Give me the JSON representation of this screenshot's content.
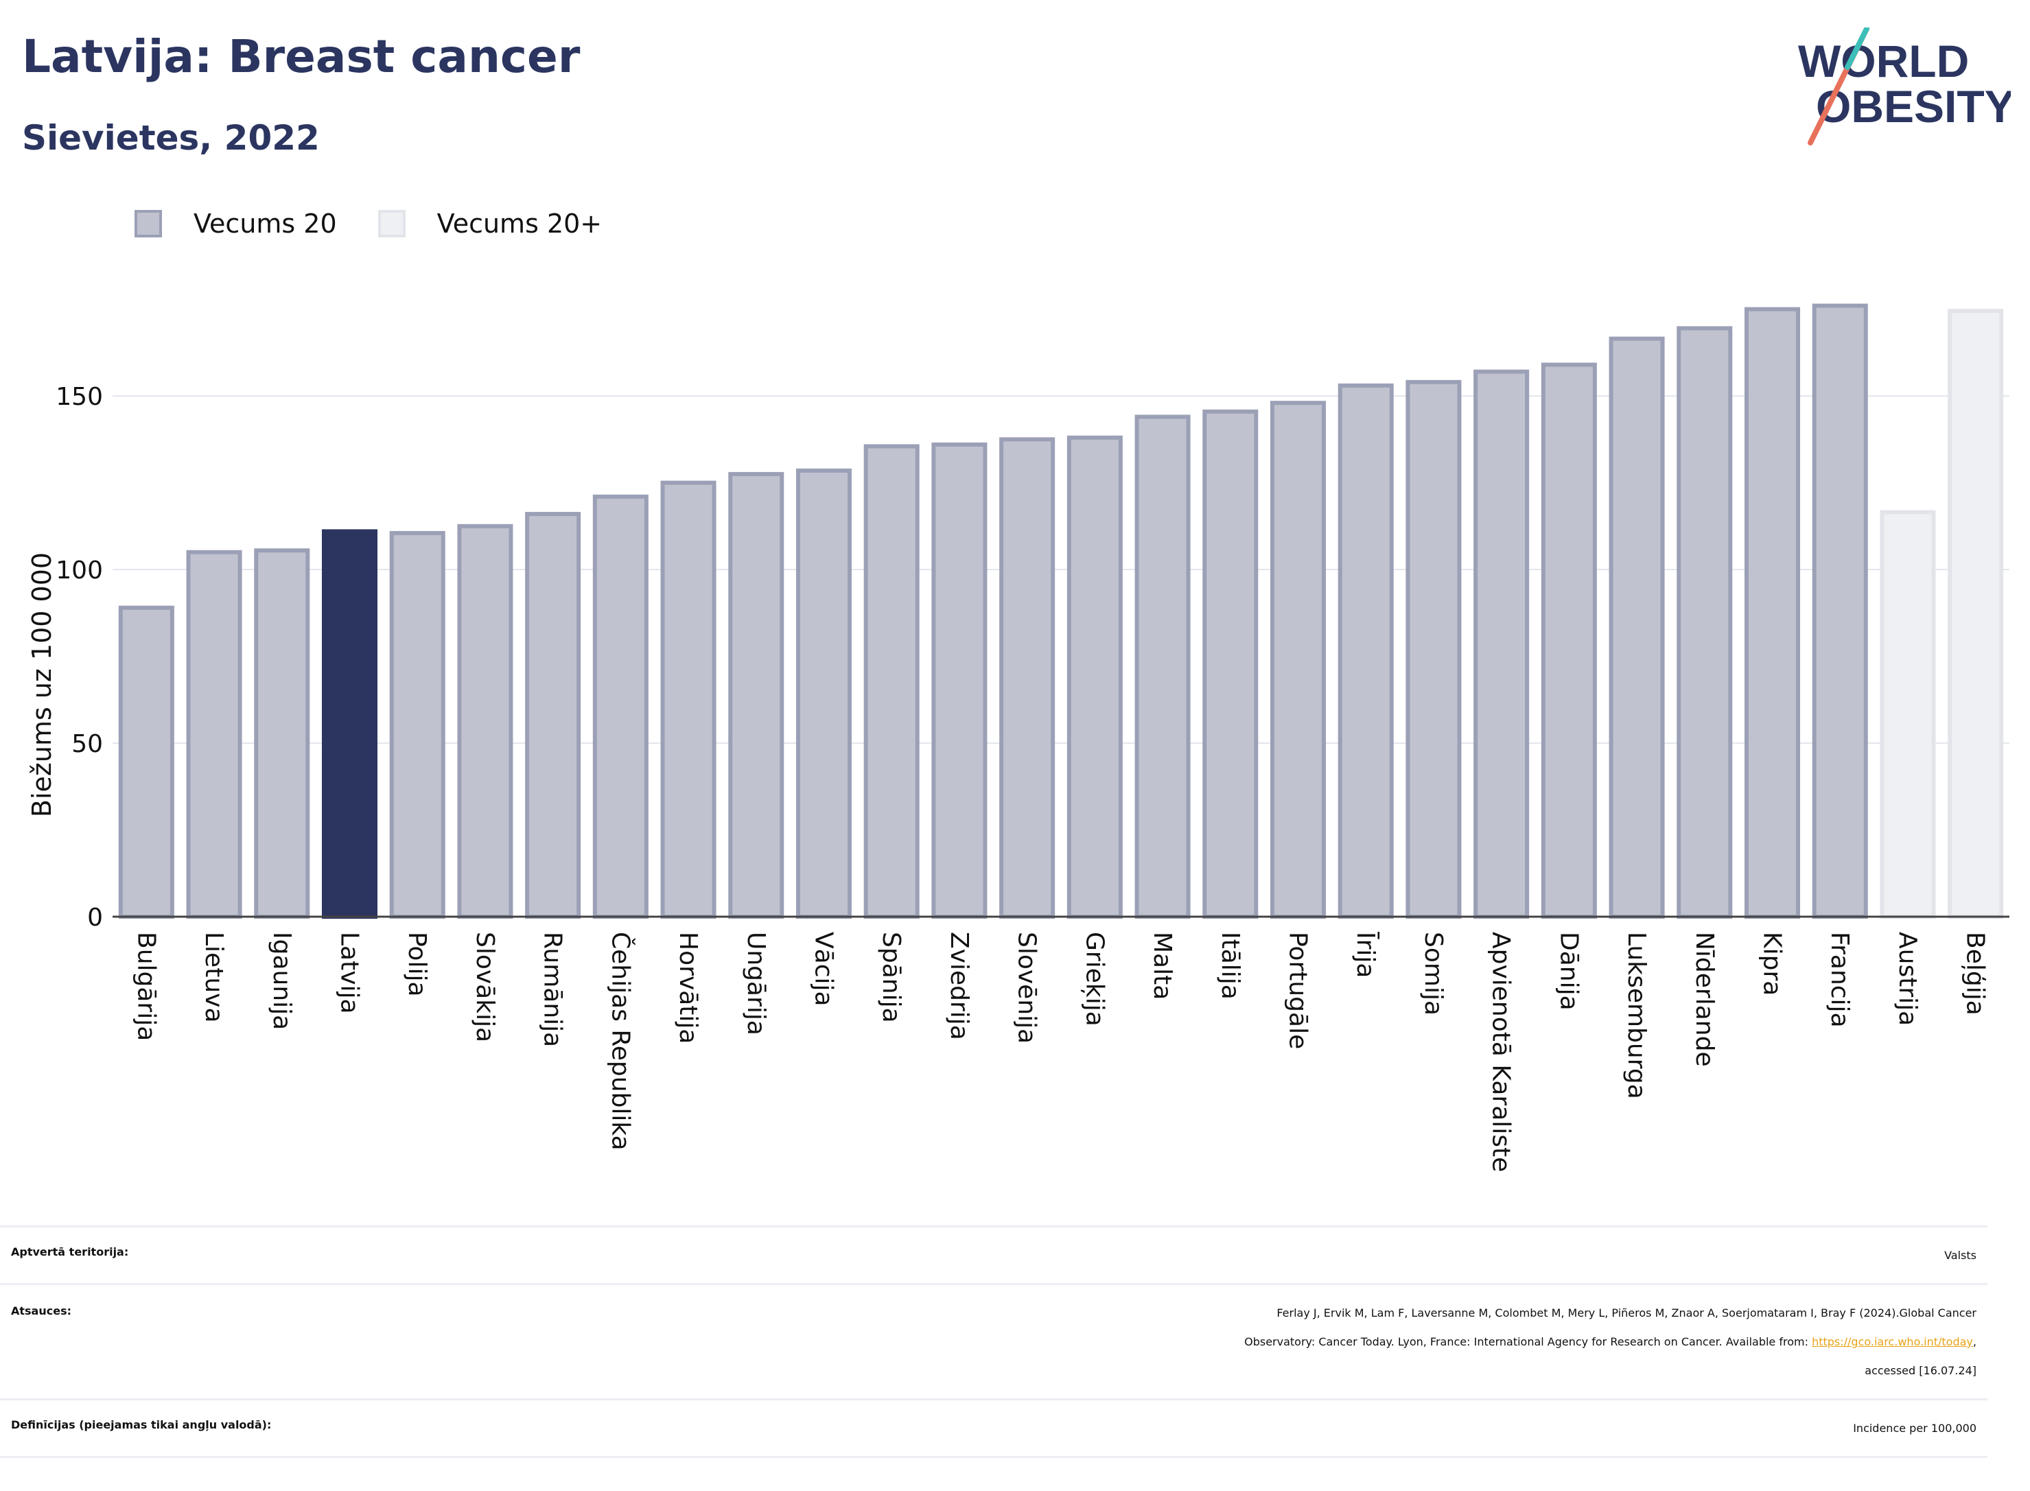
{
  "header": {
    "title": "Latvija: Breast cancer",
    "subtitle": "Sievietes, 2022"
  },
  "logo": {
    "line1": "WORLD",
    "line2": "OBESITY"
  },
  "legend": [
    {
      "label": "Vecums 20",
      "color": "#c0c3cf"
    },
    {
      "label": "Vecums 20+",
      "color": "#eff0f3"
    }
  ],
  "chart_data": {
    "type": "bar",
    "ylabel": "Biežums uz 100 000",
    "xlabel": "",
    "ylim": [
      0,
      185
    ],
    "yticks": [
      0,
      50,
      100,
      150
    ],
    "grid": true,
    "categories": [
      "Bulgārija",
      "Lietuva",
      "Igaunija",
      "Latvija",
      "Polija",
      "Slovākija",
      "Rumānija",
      "Čehijas Republika",
      "Horvātija",
      "Ungārija",
      "Vācija",
      "Spānija",
      "Zviedrija",
      "Slovēnija",
      "Grieķija",
      "Malta",
      "Itālija",
      "Portugāle",
      "Īrija",
      "Somija",
      "Apvienotā Karaliste",
      "Dānija",
      "Luksemburga",
      "Nīderlande",
      "Kipra",
      "Francija",
      "Austrija",
      "Beļģija"
    ],
    "values": [
      89,
      105,
      105.5,
      111,
      110.5,
      112.5,
      116,
      121,
      125,
      127.5,
      128.5,
      135.5,
      136,
      137.5,
      138,
      144,
      145.5,
      148,
      153,
      154,
      157,
      159,
      166.5,
      169.5,
      175,
      176,
      116.5,
      174.5
    ],
    "series_index": [
      0,
      0,
      0,
      0,
      0,
      0,
      0,
      0,
      0,
      0,
      0,
      0,
      0,
      0,
      0,
      0,
      0,
      0,
      0,
      0,
      0,
      0,
      0,
      0,
      0,
      0,
      1,
      1
    ],
    "highlight": "Latvija",
    "colors": {
      "age20_fill": "#c0c3cf",
      "age20_stroke": "#9ba0b6",
      "age20plus_fill": "#eff0f3",
      "age20plus_stroke": "#e2e4ea",
      "highlight": "#2b3560"
    }
  },
  "meta": {
    "territory_label": "Aptvertā teritorija:",
    "territory_value": "Valsts",
    "refs_label": "Atsauces:",
    "refs_line1": "Ferlay J, Ervik M, Lam F, Laversanne M, Colombet M, Mery L, Piñeros M, Znaor A, Soerjomataram I, Bray F (2024).Global Cancer",
    "refs_line2_pre": "Observatory: Cancer Today. Lyon, France: International Agency for Research on Cancer. Available from: ",
    "refs_link": "https://gco.iarc.who.int/today",
    "refs_line2_post": ",",
    "refs_line3": "accessed [16.07.24]",
    "defs_label": "Definīcijas (pieejamas tikai angļu valodā):",
    "defs_value": "Incidence per 100,000"
  }
}
